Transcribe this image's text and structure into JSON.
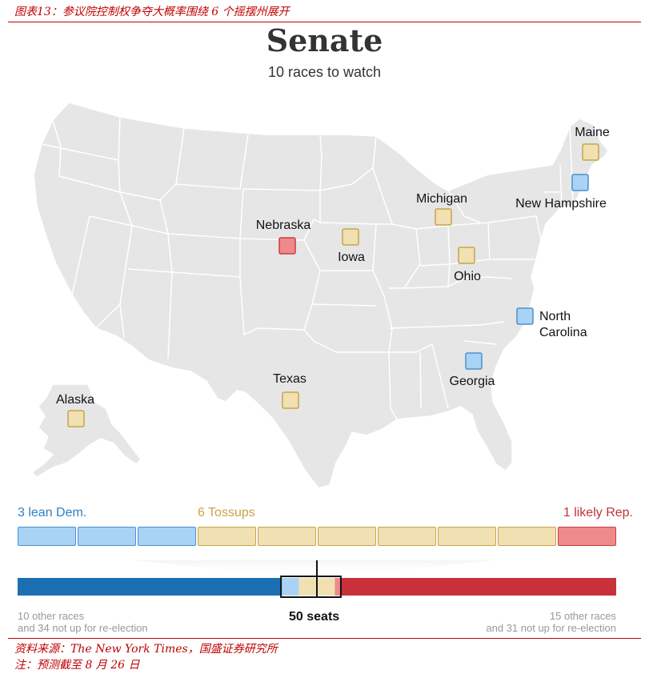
{
  "caption": "图表13：参议院控制权争夺大概率围绕 6 个摇摆州展开",
  "title": "Senate",
  "subtitle": "10 races to watch",
  "colors": {
    "lean_dem_fill": "#a9d3f5",
    "lean_dem_stroke": "#4a90d2",
    "tossup_fill": "#f0e0b2",
    "tossup_stroke": "#c9a349",
    "likely_rep_fill": "#ef8a8a",
    "likely_rep_stroke": "#cc3d3d",
    "dem_bar": "#1d6fb4",
    "rep_bar": "#c8313a",
    "land": "#e6e6e6",
    "border": "#ffffff"
  },
  "map": {
    "states": [
      {
        "name": "Maine",
        "rating": "tossup"
      },
      {
        "name": "New Hampshire",
        "rating": "lean_dem"
      },
      {
        "name": "Michigan",
        "rating": "tossup"
      },
      {
        "name": "Nebraska",
        "rating": "likely_rep"
      },
      {
        "name": "Iowa",
        "rating": "tossup"
      },
      {
        "name": "Ohio",
        "rating": "tossup"
      },
      {
        "name": "North Carolina",
        "rating": "lean_dem"
      },
      {
        "name": "Georgia",
        "rating": "lean_dem"
      },
      {
        "name": "Texas",
        "rating": "tossup"
      },
      {
        "name": "Alaska",
        "rating": "tossup"
      }
    ]
  },
  "ratings": {
    "lean_dem": {
      "label": "3 lean Dem.",
      "count": 3
    },
    "tossup": {
      "label": "6 Tossups",
      "count": 6
    },
    "likely_rep": {
      "label": "1 likely Rep.",
      "count": 1
    }
  },
  "seat_bar": {
    "total_seats": 100,
    "dem_safe_seats": 44,
    "rep_safe_seats": 46,
    "majority_label": "50 seats",
    "left_note": [
      "10 other races",
      "and 34 not up for re-election"
    ],
    "right_note": [
      "15 other races",
      "and 31 not up for re-election"
    ]
  },
  "source": "资料来源：The New York Times，国盛证券研究所",
  "note": "注：预测截至 8 月 26 日"
}
